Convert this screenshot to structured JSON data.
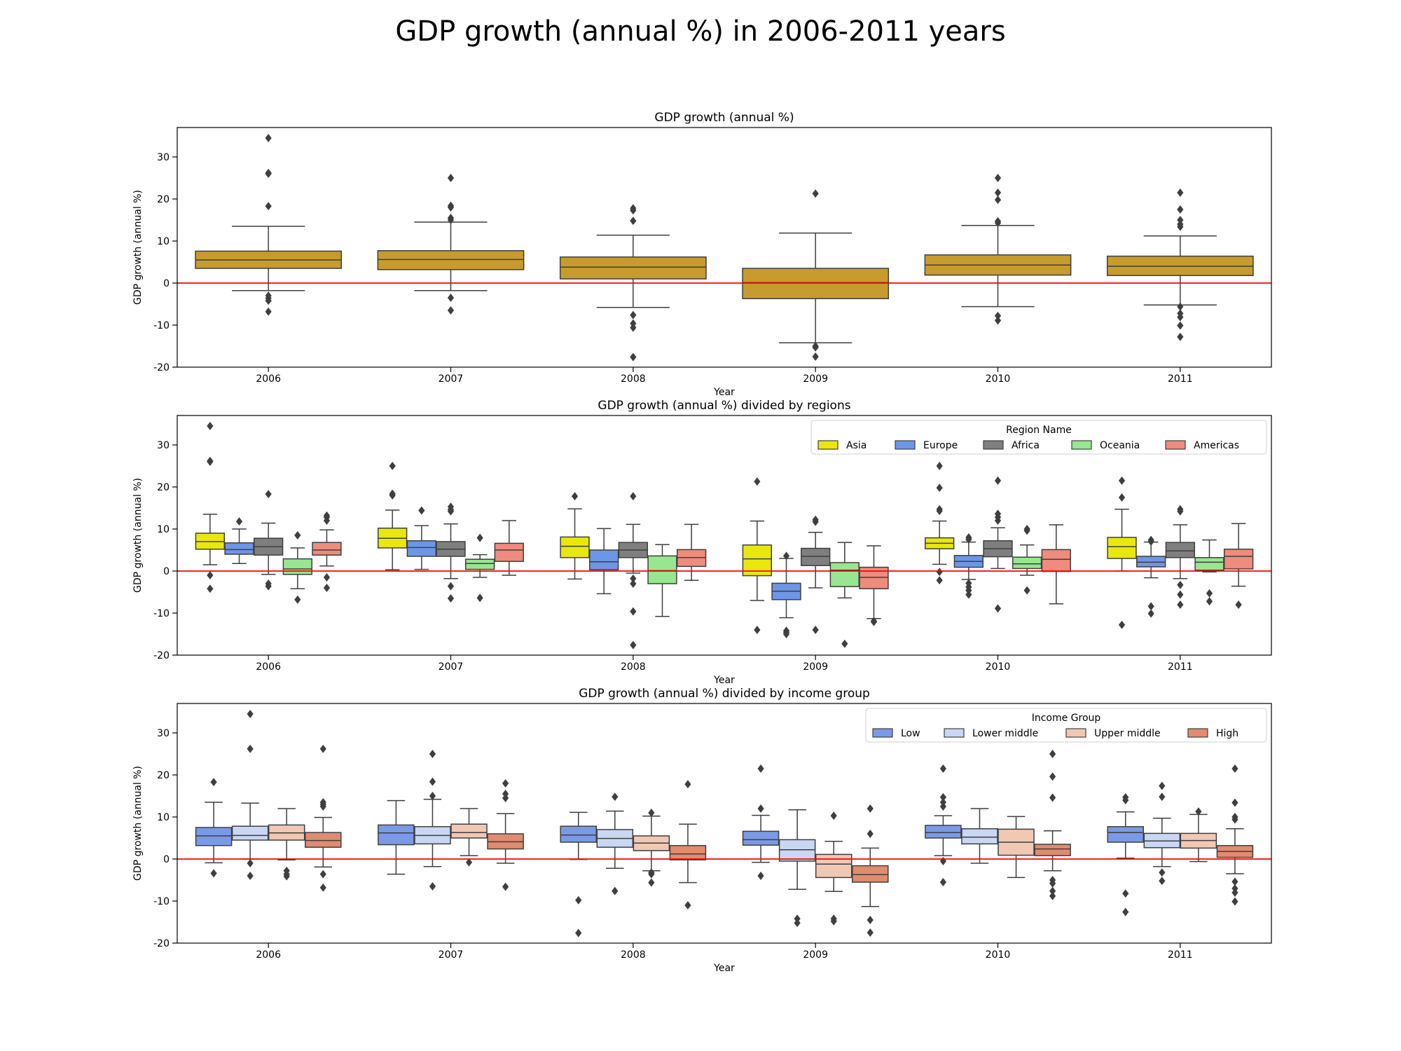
{
  "suptitle": "GDP growth (annual %) in 2006-2011 years",
  "colors": {
    "overall": "#c89b2e",
    "zero_line": "#ff0000",
    "box_edge": "#3f3f3f"
  },
  "chart_data": [
    {
      "type": "box",
      "title": "GDP growth (annual %)",
      "xlabel": "Year",
      "ylabel": "GDP growth (annual %)",
      "categories": [
        "2006",
        "2007",
        "2008",
        "2009",
        "2010",
        "2011"
      ],
      "ylim": [
        -20,
        37
      ],
      "yticks": [
        -20,
        -10,
        0,
        10,
        20,
        30
      ],
      "reference_line": 0,
      "legend": null,
      "series": [
        {
          "color": "#c89b2e",
          "boxes": [
            {
              "q1": 3.5,
              "median": 5.5,
              "q3": 7.6,
              "whislo": -1.8,
              "whishi": 13.5,
              "fliers": [
                34.5,
                26.2,
                26.0,
                18.3,
                -3.0,
                -3.6,
                -4.2,
                -6.8
              ]
            },
            {
              "q1": 3.2,
              "median": 5.6,
              "q3": 7.7,
              "whislo": -1.8,
              "whishi": 14.5,
              "fliers": [
                25.0,
                18.4,
                18.0,
                15.5,
                15.0,
                -3.5,
                -6.5
              ]
            },
            {
              "q1": 1.0,
              "median": 3.8,
              "q3": 6.2,
              "whislo": -5.8,
              "whishi": 11.4,
              "fliers": [
                17.8,
                17.3,
                14.8,
                -7.6,
                -9.6,
                -10.6,
                -17.6
              ]
            },
            {
              "q1": -3.7,
              "median": 0.1,
              "q3": 3.5,
              "whislo": -14.2,
              "whishi": 11.9,
              "fliers": [
                21.3,
                -15.0,
                -15.3,
                -17.5
              ]
            },
            {
              "q1": 1.9,
              "median": 4.3,
              "q3": 6.7,
              "whislo": -5.6,
              "whishi": 13.7,
              "fliers": [
                25.0,
                21.5,
                19.8,
                14.7,
                14.3,
                -7.8,
                -8.9
              ]
            },
            {
              "q1": 1.8,
              "median": 4.0,
              "q3": 6.4,
              "whislo": -5.2,
              "whishi": 11.2,
              "fliers": [
                21.5,
                17.5,
                15.0,
                14.0,
                13.4,
                -5.6,
                -7.2,
                -8.1,
                -10.1,
                -12.8
              ]
            }
          ]
        }
      ]
    },
    {
      "type": "box",
      "title": "GDP growth (annual %) divided by regions",
      "xlabel": "Year",
      "ylabel": "GDP growth (annual %)",
      "categories": [
        "2006",
        "2007",
        "2008",
        "2009",
        "2010",
        "2011"
      ],
      "ylim": [
        -20,
        37
      ],
      "yticks": [
        -20,
        -10,
        0,
        10,
        20,
        30
      ],
      "reference_line": 0,
      "legend": {
        "title": "Region Name",
        "placement": "upper right"
      },
      "series": [
        {
          "name": "Asia",
          "color": "#e8e80e",
          "boxes": [
            {
              "q1": 5.2,
              "median": 7.0,
              "q3": 9.0,
              "whislo": 1.5,
              "whishi": 13.5,
              "fliers": [
                34.5,
                26.2,
                26.0,
                -1.0,
                -4.2
              ]
            },
            {
              "q1": 5.5,
              "median": 7.8,
              "q3": 10.2,
              "whislo": 0.3,
              "whishi": 14.5,
              "fliers": [
                25.0,
                18.4,
                18.0
              ]
            },
            {
              "q1": 3.2,
              "median": 5.9,
              "q3": 8.1,
              "whislo": -1.9,
              "whishi": 14.8,
              "fliers": [
                17.8
              ]
            },
            {
              "q1": -1.1,
              "median": 2.9,
              "q3": 6.2,
              "whislo": -7.0,
              "whishi": 11.9,
              "fliers": [
                21.3,
                -14.0
              ]
            },
            {
              "q1": 5.3,
              "median": 6.6,
              "q3": 7.9,
              "whislo": 1.6,
              "whishi": 11.9,
              "fliers": [
                25.0,
                19.8,
                14.7,
                14.3,
                -0.2,
                -2.2
              ]
            },
            {
              "q1": 3.0,
              "median": 5.8,
              "q3": 8.0,
              "whislo": 0.0,
              "whishi": 14.7,
              "fliers": [
                21.5,
                17.5,
                -12.8
              ]
            }
          ]
        },
        {
          "name": "Europe",
          "color": "#6e96e6",
          "boxes": [
            {
              "q1": 4.0,
              "median": 5.1,
              "q3": 6.7,
              "whislo": 1.8,
              "whishi": 10.0,
              "fliers": [
                11.8
              ]
            },
            {
              "q1": 3.5,
              "median": 5.6,
              "q3": 7.2,
              "whislo": 0.4,
              "whishi": 10.8,
              "fliers": [
                14.4
              ]
            },
            {
              "q1": 0.3,
              "median": 2.2,
              "q3": 5.0,
              "whislo": -5.4,
              "whishi": 10.1,
              "fliers": []
            },
            {
              "q1": -6.8,
              "median": -4.8,
              "q3": -2.9,
              "whislo": -11.1,
              "whishi": 3.0,
              "fliers": [
                3.6,
                -14.2,
                -14.6,
                -15.0
              ]
            },
            {
              "q1": 0.9,
              "median": 2.3,
              "q3": 3.7,
              "whislo": -2.0,
              "whishi": 6.9,
              "fliers": [
                7.5,
                8.0,
                -2.9,
                -3.8,
                -4.6,
                -5.6
              ]
            },
            {
              "q1": 1.0,
              "median": 2.1,
              "q3": 3.5,
              "whislo": -1.6,
              "whishi": 6.9,
              "fliers": [
                7.4,
                7.0,
                -8.4,
                -10.1
              ]
            }
          ]
        },
        {
          "name": "Africa",
          "color": "#7f7f7f",
          "boxes": [
            {
              "q1": 3.8,
              "median": 5.8,
              "q3": 7.8,
              "whislo": -0.8,
              "whishi": 11.4,
              "fliers": [
                18.3,
                -3.0,
                -3.6
              ]
            },
            {
              "q1": 3.5,
              "median": 5.2,
              "q3": 7.0,
              "whislo": -1.8,
              "whishi": 11.2,
              "fliers": [
                15.3,
                14.6,
                14.2,
                -3.6,
                -6.5
              ]
            },
            {
              "q1": 3.2,
              "median": 5.0,
              "q3": 6.8,
              "whislo": -0.5,
              "whishi": 11.1,
              "fliers": [
                17.8,
                -1.8,
                -3.0,
                -9.6,
                -17.6
              ]
            },
            {
              "q1": 1.3,
              "median": 3.5,
              "q3": 5.4,
              "whislo": -4.0,
              "whishi": 9.2,
              "fliers": [
                12.2,
                11.7,
                -14.0
              ]
            },
            {
              "q1": 3.4,
              "median": 5.3,
              "q3": 7.2,
              "whislo": 0.6,
              "whishi": 10.3,
              "fliers": [
                21.5,
                13.6,
                12.8,
                12.0,
                -8.9
              ]
            },
            {
              "q1": 3.2,
              "median": 4.8,
              "q3": 6.8,
              "whislo": -1.8,
              "whishi": 11.0,
              "fliers": [
                14.7,
                14.2,
                -3.3,
                -5.6,
                -8.0
              ]
            }
          ]
        },
        {
          "name": "Oceania",
          "color": "#98e690",
          "boxes": [
            {
              "q1": -0.8,
              "median": 0.5,
              "q3": 2.9,
              "whislo": -4.2,
              "whishi": 5.5,
              "fliers": [
                8.5,
                -6.8
              ]
            },
            {
              "q1": 0.4,
              "median": 1.8,
              "q3": 2.8,
              "whislo": -1.5,
              "whishi": 3.9,
              "fliers": [
                7.9,
                -6.4
              ]
            },
            {
              "q1": -3.0,
              "median": 0.1,
              "q3": 3.6,
              "whislo": -10.8,
              "whishi": 6.3,
              "fliers": []
            },
            {
              "q1": -3.7,
              "median": 0.2,
              "q3": 2.0,
              "whislo": -6.4,
              "whishi": 6.8,
              "fliers": [
                -17.3
              ]
            },
            {
              "q1": 0.6,
              "median": 1.7,
              "q3": 3.3,
              "whislo": -1.0,
              "whishi": 6.2,
              "fliers": [
                10.0,
                9.6,
                -4.6
              ]
            },
            {
              "q1": 0.2,
              "median": 2.1,
              "q3": 3.2,
              "whislo": -0.2,
              "whishi": 7.4,
              "fliers": [
                -5.3,
                -7.2
              ]
            }
          ]
        },
        {
          "name": "Americas",
          "color": "#ee8c7e",
          "boxes": [
            {
              "q1": 3.8,
              "median": 5.0,
              "q3": 6.8,
              "whislo": 1.2,
              "whishi": 9.8,
              "fliers": [
                13.2,
                12.8,
                12.0,
                -1.5,
                -4.0
              ]
            },
            {
              "q1": 2.3,
              "median": 5.0,
              "q3": 6.6,
              "whislo": -1.0,
              "whishi": 12.0,
              "fliers": []
            },
            {
              "q1": 1.1,
              "median": 3.2,
              "q3": 5.1,
              "whislo": -2.2,
              "whishi": 11.1,
              "fliers": []
            },
            {
              "q1": -4.2,
              "median": -1.5,
              "q3": 0.9,
              "whislo": -11.3,
              "whishi": 6.0,
              "fliers": [
                -11.9,
                -12.1
              ]
            },
            {
              "q1": -0.1,
              "median": 2.8,
              "q3": 5.1,
              "whislo": -7.8,
              "whishi": 11.0,
              "fliers": []
            },
            {
              "q1": 0.5,
              "median": 3.5,
              "q3": 5.2,
              "whislo": -3.6,
              "whishi": 11.3,
              "fliers": [
                -8.0
              ]
            }
          ]
        }
      ]
    },
    {
      "type": "box",
      "title": "GDP growth (annual %) divided by income group",
      "xlabel": "Year",
      "ylabel": "GDP growth (annual %)",
      "categories": [
        "2006",
        "2007",
        "2008",
        "2009",
        "2010",
        "2011"
      ],
      "ylim": [
        -20,
        37
      ],
      "yticks": [
        -20,
        -10,
        0,
        10,
        20,
        30
      ],
      "reference_line": 0,
      "legend": {
        "title": "Income Group",
        "placement": "upper right"
      },
      "series": [
        {
          "name": "Low",
          "color": "#7b9ae6",
          "boxes": [
            {
              "q1": 3.2,
              "median": 5.5,
              "q3": 7.5,
              "whislo": -0.9,
              "whishi": 13.5,
              "fliers": [
                18.3,
                -3.4
              ]
            },
            {
              "q1": 3.4,
              "median": 6.2,
              "q3": 8.1,
              "whislo": -3.6,
              "whishi": 13.9,
              "fliers": []
            },
            {
              "q1": 4.0,
              "median": 5.7,
              "q3": 7.8,
              "whislo": -0.1,
              "whishi": 11.1,
              "fliers": [
                -9.8,
                -17.6
              ]
            },
            {
              "q1": 3.3,
              "median": 4.6,
              "q3": 6.6,
              "whislo": -0.8,
              "whishi": 10.4,
              "fliers": [
                21.5,
                12.0,
                -4.0
              ]
            },
            {
              "q1": 5.0,
              "median": 6.3,
              "q3": 8.0,
              "whislo": 0.8,
              "whishi": 10.3,
              "fliers": [
                21.5,
                14.7,
                13.5,
                12.5,
                -0.5,
                -5.5
              ]
            },
            {
              "q1": 4.0,
              "median": 6.3,
              "q3": 7.7,
              "whislo": 0.2,
              "whishi": 11.2,
              "fliers": [
                14.7,
                14.0,
                -8.2,
                -12.6
              ]
            }
          ]
        },
        {
          "name": "Lower middle",
          "color": "#c9d7f2",
          "boxes": [
            {
              "q1": 4.5,
              "median": 5.6,
              "q3": 7.8,
              "whislo": 0.0,
              "whishi": 13.3,
              "fliers": [
                34.5,
                26.2,
                -1.0,
                -4.0
              ]
            },
            {
              "q1": 3.6,
              "median": 5.6,
              "q3": 7.7,
              "whislo": -1.8,
              "whishi": 14.2,
              "fliers": [
                25.0,
                18.4,
                15.0,
                -6.5
              ]
            },
            {
              "q1": 2.8,
              "median": 4.9,
              "q3": 7.0,
              "whislo": -2.2,
              "whishi": 11.4,
              "fliers": [
                14.8,
                -7.6
              ]
            },
            {
              "q1": -0.5,
              "median": 2.2,
              "q3": 4.6,
              "whislo": -7.2,
              "whishi": 11.7,
              "fliers": [
                -14.2,
                -15.2
              ]
            },
            {
              "q1": 3.6,
              "median": 5.2,
              "q3": 7.2,
              "whislo": -1.0,
              "whishi": 12.0,
              "fliers": []
            },
            {
              "q1": 2.7,
              "median": 4.3,
              "q3": 6.1,
              "whislo": -1.8,
              "whishi": 9.7,
              "fliers": [
                17.4,
                14.8,
                -3.2,
                -5.2
              ]
            }
          ]
        },
        {
          "name": "Upper middle",
          "color": "#f0c8b4",
          "boxes": [
            {
              "q1": 4.5,
              "median": 6.2,
              "q3": 8.1,
              "whislo": -0.2,
              "whishi": 12.0,
              "fliers": [
                -2.8,
                -3.6,
                -4.1
              ]
            },
            {
              "q1": 5.0,
              "median": 6.3,
              "q3": 8.3,
              "whislo": 0.8,
              "whishi": 12.0,
              "fliers": [
                -0.8
              ]
            },
            {
              "q1": 2.0,
              "median": 3.8,
              "q3": 5.5,
              "whislo": -2.8,
              "whishi": 10.2,
              "fliers": [
                11.0,
                -3.2,
                -3.6,
                -5.6
              ]
            },
            {
              "q1": -4.4,
              "median": -1.2,
              "q3": 1.1,
              "whislo": -7.7,
              "whishi": 4.2,
              "fliers": [
                10.3,
                -14.2,
                -14.8
              ]
            },
            {
              "q1": 0.9,
              "median": 4.0,
              "q3": 7.1,
              "whislo": -4.4,
              "whishi": 10.1,
              "fliers": []
            },
            {
              "q1": 2.6,
              "median": 4.4,
              "q3": 6.1,
              "whislo": -0.6,
              "whishi": 10.6,
              "fliers": [
                11.3
              ]
            }
          ]
        },
        {
          "name": "High",
          "color": "#e08c70",
          "boxes": [
            {
              "q1": 2.8,
              "median": 4.4,
              "q3": 6.3,
              "whislo": -1.9,
              "whishi": 9.9,
              "fliers": [
                26.2,
                13.5,
                13.0,
                12.5,
                -3.6,
                -6.8
              ]
            },
            {
              "q1": 2.4,
              "median": 4.1,
              "q3": 6.0,
              "whislo": -1.0,
              "whishi": 10.8,
              "fliers": [
                18.0,
                15.5,
                14.5,
                -6.6
              ]
            },
            {
              "q1": -0.2,
              "median": 1.2,
              "q3": 3.2,
              "whislo": -5.6,
              "whishi": 8.3,
              "fliers": [
                17.8,
                -11.0
              ]
            },
            {
              "q1": -5.5,
              "median": -3.7,
              "q3": -1.6,
              "whislo": -11.3,
              "whishi": 2.6,
              "fliers": [
                12.0,
                6.0,
                -14.5,
                -17.5
              ]
            },
            {
              "q1": 0.8,
              "median": 2.4,
              "q3": 3.5,
              "whislo": -2.8,
              "whishi": 6.7,
              "fliers": [
                25.0,
                19.6,
                14.6,
                -5.0,
                -5.8,
                -7.6,
                -8.8
              ]
            },
            {
              "q1": 0.4,
              "median": 1.8,
              "q3": 3.2,
              "whislo": -3.5,
              "whishi": 7.2,
              "fliers": [
                21.5,
                13.4,
                10.0,
                9.4,
                -5.4,
                -7.0,
                -8.0,
                -10.1
              ]
            }
          ]
        }
      ]
    }
  ]
}
